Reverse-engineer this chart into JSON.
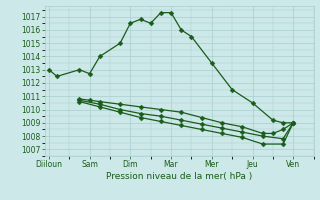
{
  "xlabel": "Pression niveau de la mer( hPa )",
  "background_color": "#cce8e8",
  "grid_color": "#aacece",
  "line_color": "#1a5c1a",
  "ylim": [
    1006.5,
    1017.8
  ],
  "yticks": [
    1007,
    1008,
    1009,
    1010,
    1011,
    1012,
    1013,
    1014,
    1015,
    1016,
    1017
  ],
  "x_labels": [
    "Diiloun",
    "Sam",
    "Dim",
    "Mar",
    "Mer",
    "Jeu",
    "Ven"
  ],
  "x_positions": [
    0,
    2,
    4,
    6,
    8,
    10,
    12
  ],
  "xlim": [
    -0.2,
    13.0
  ],
  "line1_x": [
    0,
    0.4,
    1.5,
    2.0,
    2.5,
    3.5,
    4.0,
    4.5,
    5.0,
    5.5,
    6.0,
    6.5,
    7.0,
    8.0,
    9.0,
    10.0,
    11.0,
    11.5,
    12.0
  ],
  "line1_y": [
    1013.0,
    1012.5,
    1013.0,
    1012.7,
    1014.0,
    1015.0,
    1016.5,
    1016.8,
    1016.5,
    1017.3,
    1017.3,
    1016.0,
    1015.5,
    1013.5,
    1011.5,
    1010.5,
    1009.2,
    1009.0,
    1009.0
  ],
  "line2_x": [
    1.5,
    2.0,
    2.5,
    3.5,
    4.5,
    5.5,
    6.5,
    7.5,
    8.5,
    9.5,
    10.5,
    11.0,
    11.5,
    12.0
  ],
  "line2_y": [
    1010.8,
    1010.7,
    1010.6,
    1010.4,
    1010.2,
    1010.0,
    1009.8,
    1009.4,
    1009.0,
    1008.7,
    1008.2,
    1008.2,
    1008.5,
    1009.0
  ],
  "line3_x": [
    1.5,
    2.5,
    3.5,
    4.5,
    5.5,
    6.5,
    7.5,
    8.5,
    9.5,
    10.5,
    11.5,
    12.0
  ],
  "line3_y": [
    1010.7,
    1010.4,
    1010.0,
    1009.7,
    1009.5,
    1009.2,
    1008.9,
    1008.6,
    1008.3,
    1008.0,
    1007.8,
    1009.0
  ],
  "line4_x": [
    1.5,
    2.5,
    3.5,
    4.5,
    5.5,
    6.5,
    7.5,
    8.5,
    9.5,
    10.5,
    11.5,
    12.0
  ],
  "line4_y": [
    1010.6,
    1010.2,
    1009.8,
    1009.4,
    1009.1,
    1008.8,
    1008.5,
    1008.2,
    1007.9,
    1007.4,
    1007.4,
    1009.0
  ]
}
